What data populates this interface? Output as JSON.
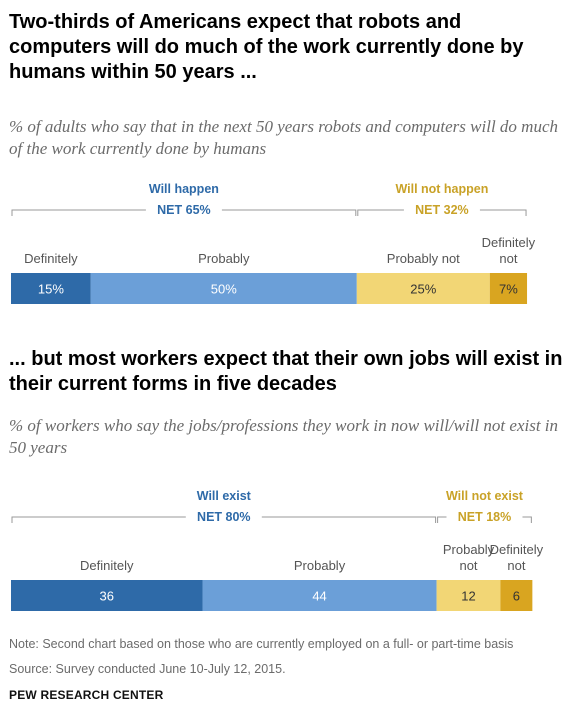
{
  "chart1": {
    "title": "Two-thirds of Americans expect that robots and computers will do much of the work currently done by humans within 50 years ...",
    "subtitle": "% of adults who say that in the next 50 years robots and computers will do much of the work currently done by humans"
  },
  "chart2": {
    "title": "... but most workers expect that their own jobs will exist in their current forms in five decades",
    "subtitle": "% of workers who say the jobs/professions they work in now will/will not exist in 50 years"
  },
  "chart_data": [
    {
      "type": "bar",
      "orientation": "horizontal-stacked",
      "categories": [
        "Definitely",
        "Probably",
        "Probably not",
        "Definitely not"
      ],
      "values": [
        15,
        50,
        25,
        7
      ],
      "value_labels": [
        "15%",
        "50%",
        "25%",
        "7%"
      ],
      "nets": [
        {
          "label": "Will happen",
          "net": "NET 65%",
          "from": 0,
          "to": 1
        },
        {
          "label": "Will not happen",
          "net": "NET 32%",
          "from": 2,
          "to": 3
        }
      ],
      "colors": [
        "#2e6aa8",
        "#6b9fd8",
        "#f2d675",
        "#d9a520"
      ],
      "net_colors": [
        "#2e6aa8",
        "#c9a227"
      ]
    },
    {
      "type": "bar",
      "orientation": "horizontal-stacked",
      "categories": [
        "Definitely",
        "Probably",
        "Probably not",
        "Definitely not"
      ],
      "values": [
        36,
        44,
        12,
        6
      ],
      "value_labels": [
        "36",
        "44",
        "12",
        "6"
      ],
      "nets": [
        {
          "label": "Will exist",
          "net": "NET 80%",
          "from": 0,
          "to": 1
        },
        {
          "label": "Will not exist",
          "net": "NET 18%",
          "from": 2,
          "to": 3
        }
      ],
      "colors": [
        "#2e6aa8",
        "#6b9fd8",
        "#f2d675",
        "#d9a520"
      ],
      "net_colors": [
        "#2e6aa8",
        "#c9a227"
      ]
    }
  ],
  "note": "Note: Second chart based on those who are currently employed on a full- or part-time basis",
  "source": "Source: Survey conducted June 10-July 12, 2015.",
  "brand": "PEW RESEARCH CENTER"
}
